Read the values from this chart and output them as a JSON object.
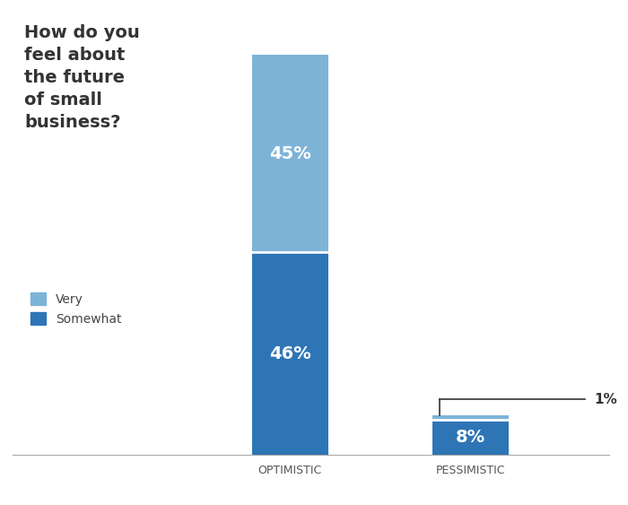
{
  "categories": [
    "OPTIMISTIC",
    "PESSIMISTIC"
  ],
  "somewhat_values": [
    46,
    8
  ],
  "very_values": [
    45,
    1
  ],
  "color_somewhat": "#2E75B6",
  "color_very": "#7EB3D8",
  "background_color": "#ffffff",
  "title_lines": [
    "How do you",
    "feel about",
    "the future",
    "of small",
    "business?"
  ],
  "label_very": "Very",
  "label_somewhat": "Somewhat",
  "bar_width": 0.55,
  "figsize": [
    7.0,
    5.63
  ],
  "dpi": 100,
  "ylim": [
    0,
    100
  ],
  "title_fontsize": 14,
  "bar_label_fontsize": 14,
  "tick_fontsize": 9,
  "legend_fontsize": 10,
  "annotation_fontsize": 11
}
